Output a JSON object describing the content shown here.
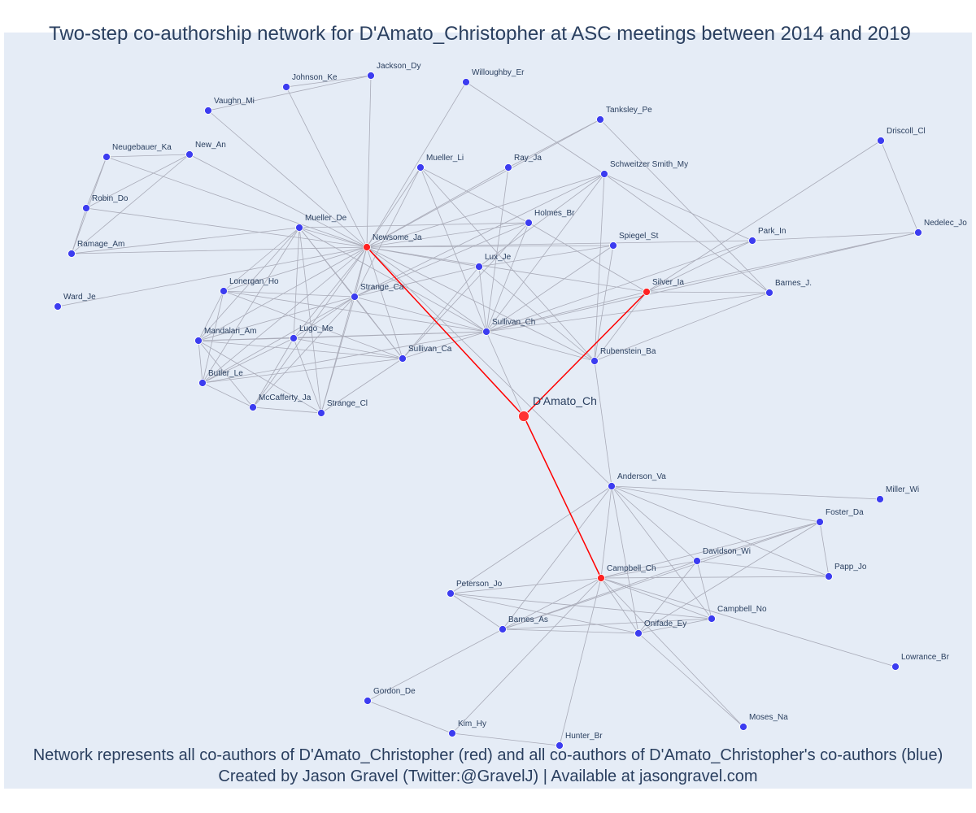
{
  "title": "Two-step co-authorship network for D'Amato_Christopher at ASC meetings between 2014 and 2019",
  "footer": {
    "line1": "Network represents all co-authors of D'Amato_Christopher (red) and all co-authors of D'Amato_Christopher's co-authors (blue)",
    "line2": "Created by Jason Gravel (Twitter:@GravelJ) | Available at jasongravel.com"
  },
  "colors": {
    "plot_background": "#e5ecf6",
    "ego_node": "#ff3333",
    "first_step_node": "#ff2222",
    "second_step_node": "#3c3cf0",
    "ego_edge": "#ff0000",
    "other_edge": "#a9abb8",
    "text": "#2a3f5f"
  },
  "network": {
    "ego": "D'Amato_Ch",
    "first_step": [
      "Newsome_Ja",
      "Silver_Ia",
      "Campbell_Ch"
    ],
    "second_step": [
      "Jackson_Dy",
      "Johnson_Ke",
      "Vaughn_Mi",
      "Willoughby_Er",
      "Tanksley_Pe",
      "Driscoll_Cl",
      "Neugebauer_Ka",
      "New_An",
      "Mueller_Li",
      "Ray_Ja",
      "Schweitzer Smith_My",
      "Robin_Do",
      "Mueller_De",
      "Holmes_Br",
      "Ramage_Am",
      "Spiegel_St",
      "Park_In",
      "Nedelec_Jo",
      "Lux_Je",
      "Lonergan_Ho",
      "Strange_Ca",
      "Ward_Je",
      "Barnes_J.",
      "Mandalari_Am",
      "Lugo_Me",
      "Sullivan_Ch",
      "Rubenstein_Ba",
      "Sullivan_Ca",
      "Butler_Le",
      "McCafferty_Ja",
      "Strange_Cl",
      "Anderson_Va",
      "Miller_Wi",
      "Foster_Da",
      "Davidson_Wi",
      "Papp_Jo",
      "Peterson_Jo",
      "Campbell_No",
      "Barnes_As",
      "Onifade_Ey",
      "Lowrance_Br",
      "Gordon_De",
      "Moses_Na",
      "Kim_Hy",
      "Hunter_Br"
    ]
  }
}
